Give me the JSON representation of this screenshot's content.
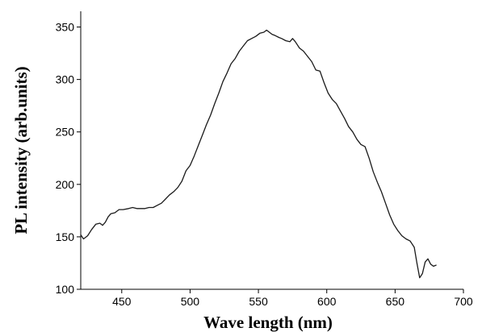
{
  "chart_data": {
    "type": "line",
    "title": "",
    "xlabel": "Wave length (nm)",
    "ylabel": "PL intensity (arb.units)",
    "xlim": [
      420,
      700
    ],
    "ylim": [
      100,
      365
    ],
    "xticks": [
      450,
      500,
      550,
      600,
      650,
      700
    ],
    "yticks": [
      100,
      150,
      200,
      250,
      300,
      350
    ],
    "x_tick_labels": [
      "450",
      "500",
      "550",
      "600",
      "650",
      "700"
    ],
    "y_tick_labels": [
      "100",
      "150",
      "200",
      "250",
      "300",
      "350"
    ],
    "grid": false,
    "legend": "none",
    "series": [
      {
        "color": "#1a1a1a",
        "points": [
          [
            420,
            152
          ],
          [
            422,
            148
          ],
          [
            425,
            151
          ],
          [
            428,
            157
          ],
          [
            431,
            162
          ],
          [
            434,
            163
          ],
          [
            436,
            161
          ],
          [
            438,
            164
          ],
          [
            440,
            169
          ],
          [
            442,
            172
          ],
          [
            445,
            173
          ],
          [
            448,
            176
          ],
          [
            451,
            176
          ],
          [
            455,
            177
          ],
          [
            458,
            178
          ],
          [
            461,
            177
          ],
          [
            464,
            177
          ],
          [
            467,
            177
          ],
          [
            470,
            178
          ],
          [
            473,
            178
          ],
          [
            476,
            180
          ],
          [
            479,
            182
          ],
          [
            482,
            186
          ],
          [
            485,
            190
          ],
          [
            488,
            193
          ],
          [
            491,
            197
          ],
          [
            494,
            203
          ],
          [
            497,
            213
          ],
          [
            500,
            218
          ],
          [
            503,
            227
          ],
          [
            506,
            237
          ],
          [
            509,
            247
          ],
          [
            512,
            257
          ],
          [
            515,
            266
          ],
          [
            518,
            277
          ],
          [
            521,
            287
          ],
          [
            524,
            298
          ],
          [
            527,
            306
          ],
          [
            530,
            315
          ],
          [
            533,
            320
          ],
          [
            536,
            327
          ],
          [
            539,
            332
          ],
          [
            542,
            337
          ],
          [
            545,
            339
          ],
          [
            548,
            341
          ],
          [
            551,
            344
          ],
          [
            554,
            345
          ],
          [
            556,
            347
          ],
          [
            558,
            345
          ],
          [
            560,
            343
          ],
          [
            562,
            342
          ],
          [
            565,
            340
          ],
          [
            567,
            339
          ],
          [
            570,
            337
          ],
          [
            573,
            336
          ],
          [
            575,
            339
          ],
          [
            577,
            336
          ],
          [
            580,
            330
          ],
          [
            583,
            327
          ],
          [
            586,
            322
          ],
          [
            589,
            317
          ],
          [
            592,
            309
          ],
          [
            595,
            308
          ],
          [
            598,
            297
          ],
          [
            601,
            287
          ],
          [
            604,
            281
          ],
          [
            607,
            277
          ],
          [
            610,
            270
          ],
          [
            613,
            263
          ],
          [
            616,
            255
          ],
          [
            619,
            250
          ],
          [
            622,
            243
          ],
          [
            625,
            238
          ],
          [
            628,
            236
          ],
          [
            631,
            225
          ],
          [
            634,
            212
          ],
          [
            637,
            202
          ],
          [
            640,
            193
          ],
          [
            643,
            182
          ],
          [
            646,
            171
          ],
          [
            649,
            162
          ],
          [
            652,
            156
          ],
          [
            655,
            151
          ],
          [
            658,
            148
          ],
          [
            661,
            146
          ],
          [
            664,
            140
          ],
          [
            666,
            125
          ],
          [
            668,
            111
          ],
          [
            670,
            115
          ],
          [
            672,
            126
          ],
          [
            674,
            129
          ],
          [
            676,
            124
          ],
          [
            678,
            122
          ],
          [
            680,
            123
          ]
        ]
      }
    ]
  }
}
